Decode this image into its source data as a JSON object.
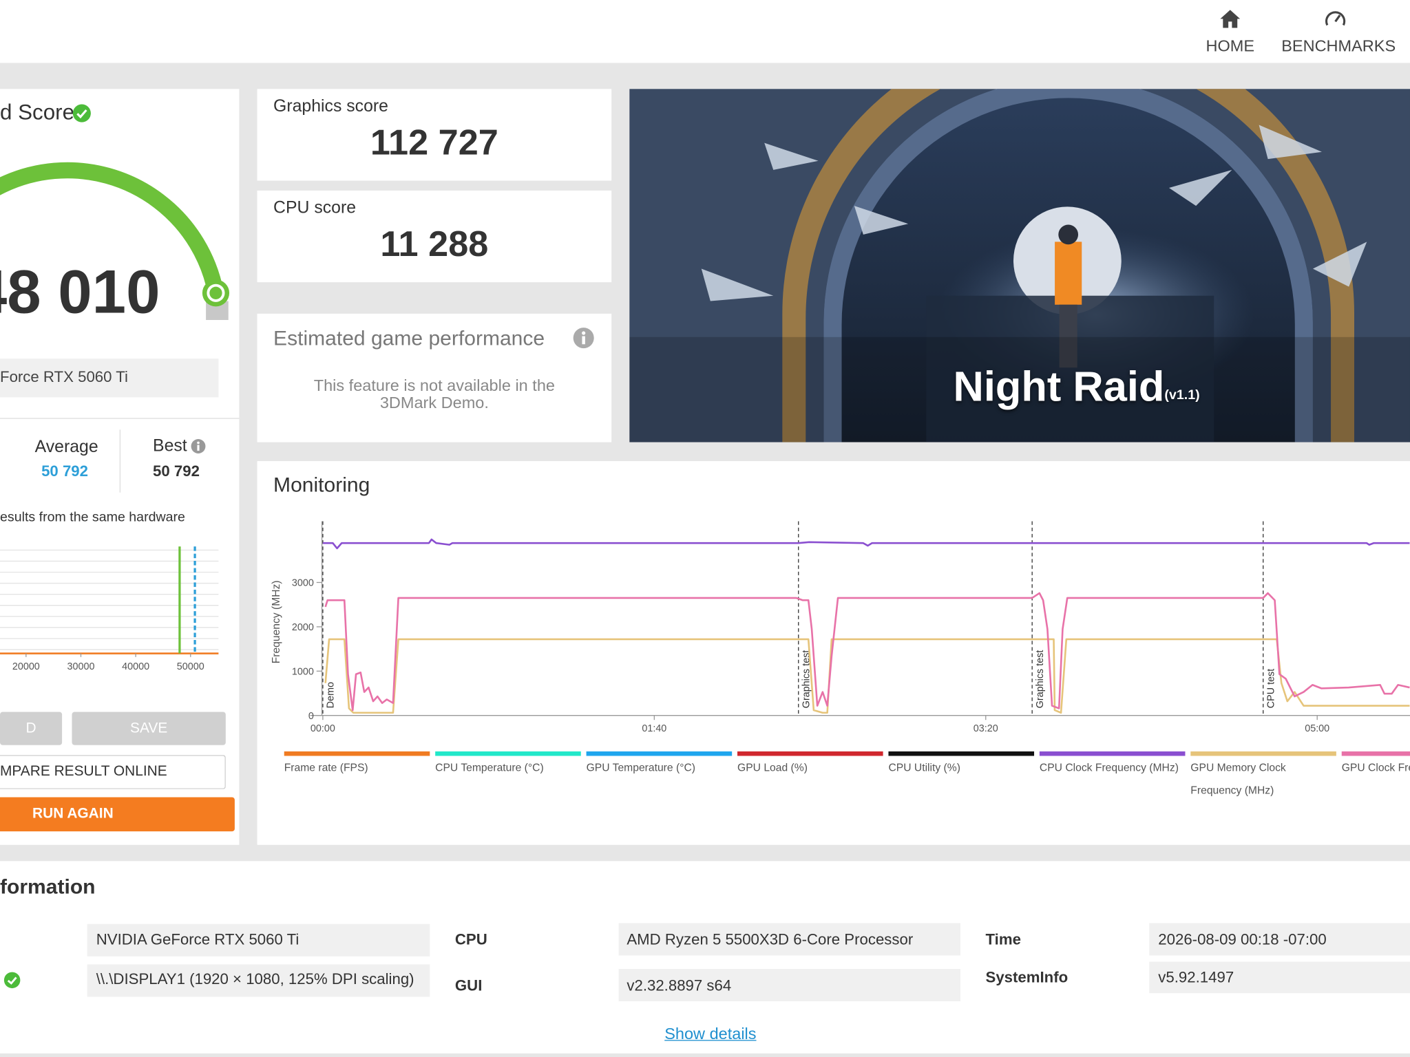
{
  "nav": {
    "home": "HOME",
    "benchmarks": "BENCHMARKS"
  },
  "score_card": {
    "title": "d Score",
    "score": "48 010",
    "gpu": "Force RTX 5060 Ti",
    "average_label": "Average",
    "average": "50 792",
    "best_label": "Best",
    "best": "50 792",
    "distribution_caption": "esults from the same hardware",
    "distribution": {
      "type": "histogram",
      "xlim": [
        15250,
        55100
      ],
      "xticks": [
        20000,
        30000,
        40000,
        50000
      ],
      "markers": [
        {
          "value": 48010,
          "color": "#6dc13a"
        },
        {
          "value": 50792,
          "color": "#2d9fd8"
        }
      ]
    },
    "buttons": [
      "D",
      "SAVE",
      "MPARE RESULT ONLINE",
      "RUN AGAIN"
    ]
  },
  "graphics_score": {
    "label": "Graphics score",
    "value": "112 727"
  },
  "cpu_score": {
    "label": "CPU score",
    "value": "11 288"
  },
  "estimated": {
    "title": "Estimated game performance",
    "message": "This feature is not available in the 3DMark Demo."
  },
  "banner": {
    "title": "Night Raid",
    "version": "(v1.1)"
  },
  "monitoring": {
    "title": "Monitoring",
    "chart": {
      "type": "line",
      "y_label": "Frequency (MHz)",
      "xlim": [
        0,
        328
      ],
      "ylim": [
        0,
        4380
      ],
      "xticks": [
        {
          "value": 0,
          "label": "00:00"
        },
        {
          "value": 100,
          "label": "01:40"
        },
        {
          "value": 200,
          "label": "03:20"
        },
        {
          "value": 300,
          "label": "05:00"
        }
      ],
      "yticks": [
        0,
        1000,
        2000,
        3000
      ],
      "markers": [
        {
          "x": 0,
          "label": "Demo"
        },
        {
          "x": 143.5,
          "label": "Graphics test"
        },
        {
          "x": 214,
          "label": "Graphics test"
        },
        {
          "x": 283.7,
          "label": "CPU test"
        }
      ],
      "series": [
        {
          "name": "Frame rate (FPS)",
          "color": "#f07b22"
        },
        {
          "name": "CPU Temperature (°C)",
          "color": "#22e8c9"
        },
        {
          "name": "GPU Temperature (°C)",
          "color": "#1fa6ee"
        },
        {
          "name": "GPU Load (%)",
          "color": "#d0282e"
        },
        {
          "name": "CPU Utility (%)",
          "color": "#111111"
        },
        {
          "name": "CPU Clock Frequency (MHz)",
          "color": "#8a4fd0",
          "x": [
            0,
            3.0,
            4.3,
            5.7,
            32.0,
            32.8,
            34.2,
            38.2,
            39.1,
            143.5,
            146.7,
            163.0,
            164.4,
            165.7,
            314.9,
            315.7,
            317.1,
            327.9
          ],
          "values": [
            3890,
            3890,
            3770,
            3890,
            3890,
            3970,
            3890,
            3850,
            3890,
            3890,
            3910,
            3890,
            3830,
            3890,
            3890,
            3850,
            3890,
            3890
          ]
        },
        {
          "name": "GPU Memory Clock Frequency (MHz)",
          "color": "#e6c47a",
          "x": [
            0.8,
            1.9,
            6.5,
            7.9,
            9.2,
            21.2,
            22.8,
            143.5,
            146.5,
            148.1,
            150.8,
            152.2,
            153.5,
            214.0,
            220.5,
            220.8,
            222.7,
            224.3,
            283.7,
            287.8,
            289.2,
            291.0,
            293.2,
            295.9,
            327.9
          ],
          "values": [
            730,
            1720,
            1720,
            160,
            60,
            60,
            1720,
            1720,
            1720,
            120,
            60,
            60,
            1720,
            1720,
            1720,
            120,
            60,
            1720,
            1720,
            1720,
            730,
            320,
            530,
            220,
            220
          ]
        },
        {
          "name": "GPU Clock Fre",
          "color": "#e872a8",
          "x": [
            0.8,
            1.4,
            6.5,
            7.6,
            9.0,
            10.0,
            11.4,
            12.5,
            13.8,
            15.2,
            16.5,
            17.9,
            19.3,
            21.2,
            22.8,
            142.9,
            144.8,
            146.5,
            147.5,
            149.2,
            150.8,
            152.2,
            153.5,
            155.4,
            214.0,
            216.2,
            217.3,
            218.6,
            220.0,
            222.1,
            223.2,
            224.6,
            283.7,
            285.1,
            287.2,
            288.6,
            290.5,
            293.2,
            295.9,
            298.6,
            301.3,
            309.5,
            319.0,
            320.3,
            322.5,
            324.4,
            327.9
          ],
          "values": [
            2450,
            2600,
            2600,
            930,
            120,
            930,
            970,
            530,
            630,
            320,
            430,
            280,
            360,
            280,
            2650,
            2650,
            2600,
            2600,
            1950,
            220,
            530,
            220,
            1340,
            2650,
            2650,
            2760,
            2600,
            1950,
            220,
            160,
            1950,
            2650,
            2650,
            2760,
            2600,
            930,
            830,
            430,
            530,
            690,
            610,
            630,
            690,
            490,
            490,
            690,
            630
          ]
        }
      ]
    }
  },
  "information": {
    "title": "formation",
    "gpu": "NVIDIA GeForce RTX 5060 Ti",
    "display": "\\\\.\\DISPLAY1 (1920 × 1080, 125% DPI scaling)",
    "cpu_label": "CPU",
    "cpu": "AMD Ryzen 5 5500X3D 6-Core Processor",
    "gui_label": "GUI",
    "gui": "v2.32.8897 s64",
    "time_label": "Time",
    "time": "2026-08-09 00:18 -07:00",
    "systeminfo_label": "SystemInfo",
    "systeminfo": "v5.92.1497",
    "show_details": "Show details"
  }
}
